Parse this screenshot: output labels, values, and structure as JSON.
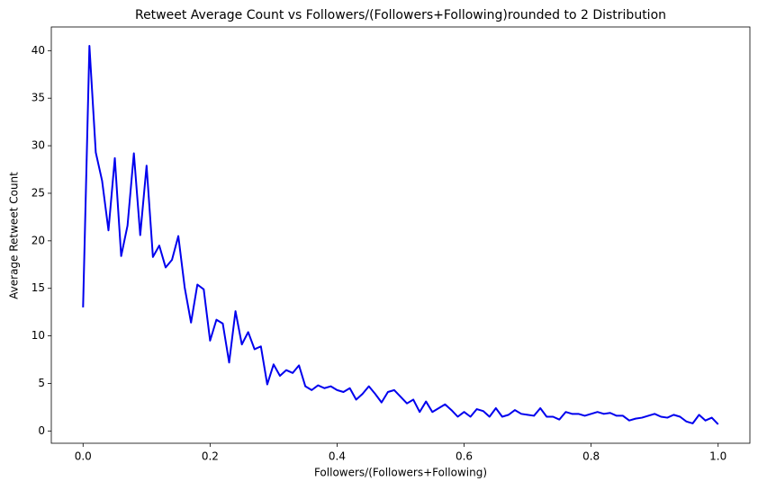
{
  "chart_data": {
    "type": "line",
    "title": "Retweet Average Count vs Followers/(Followers+Following)rounded to 2 Distribution",
    "xlabel": "Followers/(Followers+Following)",
    "ylabel": "Average Retweet Count",
    "x": [
      0,
      0.01,
      0.02,
      0.03,
      0.04,
      0.05,
      0.06,
      0.07,
      0.08,
      0.09,
      0.1,
      0.11,
      0.12,
      0.13,
      0.14,
      0.15,
      0.16,
      0.17,
      0.18,
      0.19,
      0.2,
      0.21,
      0.22,
      0.23,
      0.24,
      0.25,
      0.26,
      0.27,
      0.28,
      0.29,
      0.3,
      0.31,
      0.32,
      0.33,
      0.34,
      0.35,
      0.36,
      0.37,
      0.38,
      0.39,
      0.4,
      0.41,
      0.42,
      0.43,
      0.44,
      0.45,
      0.46,
      0.47,
      0.48,
      0.49,
      0.5,
      0.51,
      0.52,
      0.53,
      0.54,
      0.55,
      0.56,
      0.57,
      0.58,
      0.59,
      0.6,
      0.61,
      0.62,
      0.63,
      0.64,
      0.65,
      0.66,
      0.67,
      0.68,
      0.69,
      0.7,
      0.71,
      0.72,
      0.73,
      0.74,
      0.75,
      0.76,
      0.77,
      0.78,
      0.79,
      0.8,
      0.81,
      0.82,
      0.83,
      0.84,
      0.85,
      0.86,
      0.87,
      0.88,
      0.89,
      0.9,
      0.91,
      0.92,
      0.93,
      0.94,
      0.95,
      0.96,
      0.97,
      0.98,
      0.99,
      1
    ],
    "series": [
      {
        "name": "Average Retweet Count",
        "color": "#0000ee",
        "values": [
          13.0,
          40.5,
          29.3,
          26.3,
          21.1,
          28.7,
          18.4,
          21.6,
          29.2,
          20.6,
          27.9,
          18.3,
          19.5,
          17.2,
          18.0,
          20.5,
          15.1,
          11.4,
          15.4,
          14.9,
          9.5,
          11.7,
          11.3,
          7.2,
          12.6,
          9.1,
          10.4,
          8.6,
          8.9,
          4.9,
          7.0,
          5.8,
          6.4,
          6.1,
          6.9,
          4.7,
          4.3,
          4.8,
          4.5,
          4.7,
          4.3,
          4.1,
          4.5,
          3.3,
          3.9,
          4.7,
          3.9,
          3.0,
          4.1,
          4.3,
          3.6,
          2.9,
          3.3,
          2.0,
          3.1,
          2.0,
          2.4,
          2.8,
          2.2,
          1.5,
          2.0,
          1.5,
          2.3,
          2.1,
          1.5,
          2.4,
          1.5,
          1.7,
          2.2,
          1.8,
          1.7,
          1.6,
          2.4,
          1.5,
          1.5,
          1.2,
          2.0,
          1.8,
          1.8,
          1.6,
          1.8,
          2.0,
          1.8,
          1.9,
          1.6,
          1.6,
          1.1,
          1.3,
          1.4,
          1.6,
          1.8,
          1.5,
          1.4,
          1.7,
          1.5,
          1.0,
          0.8,
          1.7,
          1.1,
          1.4,
          0.7
        ]
      }
    ],
    "xlim": [
      -0.05,
      1.05
    ],
    "ylim": [
      -1.29,
      42.49
    ],
    "xticks": [
      {
        "value": 0,
        "label": "0.0"
      },
      0.2,
      0.4,
      0.6,
      0.8,
      {
        "value": 1,
        "label": "1.0"
      }
    ],
    "yticks": [
      0,
      5,
      10,
      15,
      20,
      25,
      30,
      35,
      40
    ],
    "grid": false
  }
}
